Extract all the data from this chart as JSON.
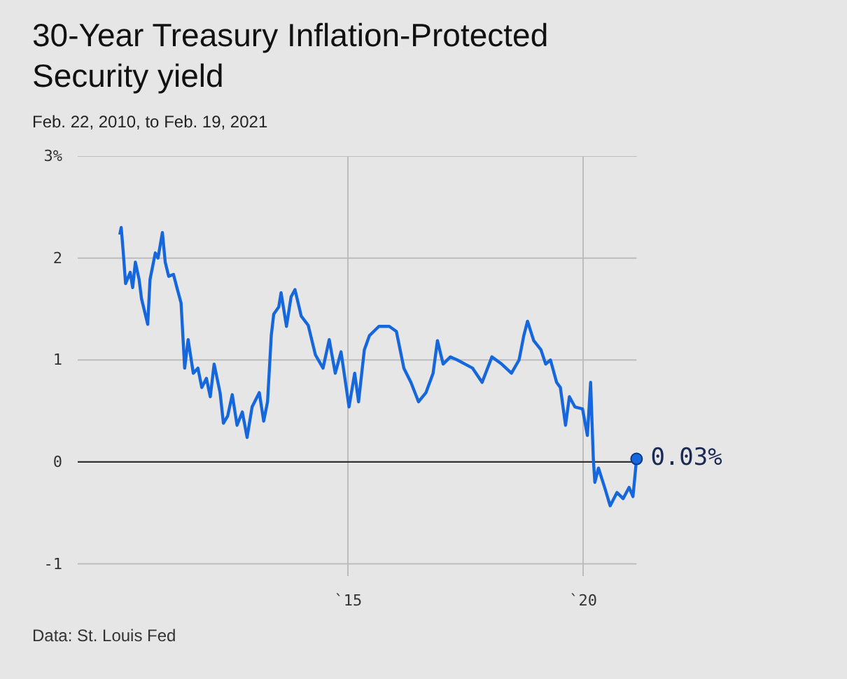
{
  "chart_data": {
    "type": "line",
    "title": "30-Year Treasury Inflation-Protected Security yield",
    "subtitle": "Feb. 22, 2010, to Feb. 19, 2021",
    "annotations": [
      {
        "text": "0.03%",
        "x": "2021-02-19",
        "y": 0.03
      },
      "Data: St. Louis Fed"
    ],
    "x": [
      "2010-02-22",
      "2010-03-05",
      "2010-03-20",
      "2010-04-08",
      "2010-05-14",
      "2010-06-02",
      "2010-06-23",
      "2010-07-22",
      "2010-08-10",
      "2010-09-27",
      "2010-10-15",
      "2010-11-25",
      "2010-12-16",
      "2011-01-19",
      "2011-02-10",
      "2011-03-09",
      "2011-04-15",
      "2011-05-14",
      "2011-06-13",
      "2011-07-11",
      "2011-08-07",
      "2011-09-16",
      "2011-10-22",
      "2011-11-21",
      "2011-12-27",
      "2012-01-26",
      "2012-02-25",
      "2012-04-11",
      "2012-05-07",
      "2012-06-09",
      "2012-07-15",
      "2012-08-21",
      "2012-10-01",
      "2012-11-07",
      "2012-12-16",
      "2013-02-10",
      "2013-03-16",
      "2013-04-15",
      "2013-05-14",
      "2013-06-02",
      "2013-07-11",
      "2013-07-29",
      "2013-09-09",
      "2013-10-15",
      "2013-11-14",
      "2014-01-02",
      "2014-02-25",
      "2014-04-22",
      "2014-06-20",
      "2014-08-07",
      "2014-09-23",
      "2014-11-07",
      "2015-01-08",
      "2015-02-21",
      "2015-03-23",
      "2015-05-07",
      "2015-06-16",
      "2015-08-28",
      "2015-11-17",
      "2016-01-11",
      "2016-03-09",
      "2016-05-03",
      "2016-07-01",
      "2016-08-28",
      "2016-10-22",
      "2016-11-25",
      "2017-01-08",
      "2017-03-05",
      "2017-04-29",
      "2017-06-27",
      "2017-08-25",
      "2017-11-07",
      "2018-01-22",
      "2018-04-08",
      "2018-06-23",
      "2018-08-21",
      "2018-09-27",
      "2018-10-26",
      "2018-12-13",
      "2019-02-07",
      "2019-03-16",
      "2019-04-22",
      "2019-06-09",
      "2019-07-08",
      "2019-08-17",
      "2019-09-16",
      "2019-10-29",
      "2019-12-27",
      "2020-02-03",
      "2020-02-28",
      "2020-03-20",
      "2020-04-01",
      "2020-04-29",
      "2020-06-16",
      "2020-07-29",
      "2020-09-20",
      "2020-11-07",
      "2020-12-23",
      "2021-01-22",
      "2021-02-19"
    ],
    "series": [
      {
        "color": "#1767dc",
        "values": [
          2.23,
          2.3,
          2.07,
          1.75,
          1.86,
          1.71,
          1.96,
          1.79,
          1.6,
          1.35,
          1.79,
          2.05,
          2.0,
          2.25,
          1.96,
          1.82,
          1.84,
          1.7,
          1.56,
          0.92,
          1.2,
          0.87,
          0.92,
          0.73,
          0.82,
          0.64,
          0.96,
          0.68,
          0.38,
          0.45,
          0.66,
          0.36,
          0.49,
          0.24,
          0.54,
          0.68,
          0.4,
          0.59,
          1.24,
          1.45,
          1.52,
          1.66,
          1.33,
          1.62,
          1.69,
          1.43,
          1.34,
          1.05,
          0.92,
          1.2,
          0.87,
          1.08,
          0.54,
          0.87,
          0.59,
          1.1,
          1.24,
          1.33,
          1.33,
          1.28,
          0.92,
          0.78,
          0.59,
          0.68,
          0.87,
          1.19,
          0.96,
          1.03,
          1.0,
          0.96,
          0.92,
          0.78,
          1.03,
          0.96,
          0.87,
          1.0,
          1.24,
          1.38,
          1.19,
          1.1,
          0.96,
          1.0,
          0.78,
          0.73,
          0.36,
          0.64,
          0.54,
          0.52,
          0.26,
          0.78,
          0.03,
          -0.2,
          -0.06,
          -0.25,
          -0.43,
          -0.3,
          -0.36,
          -0.25,
          -0.34,
          0.03
        ]
      }
    ],
    "xlim": [
      "2009-04-01",
      "2021-02-19"
    ],
    "xticks": [
      {
        "value": "2015-01-01",
        "label": "`15"
      },
      {
        "value": "2020-01-01",
        "label": "`20"
      }
    ],
    "ylim": [
      -1.12,
      3
    ],
    "yticks": [
      {
        "value": 3,
        "label": "3%"
      },
      2,
      1,
      0,
      -1
    ],
    "ref_lines": [
      {
        "axis": "y",
        "value": 0,
        "color": "#333333"
      }
    ],
    "grid": true
  }
}
